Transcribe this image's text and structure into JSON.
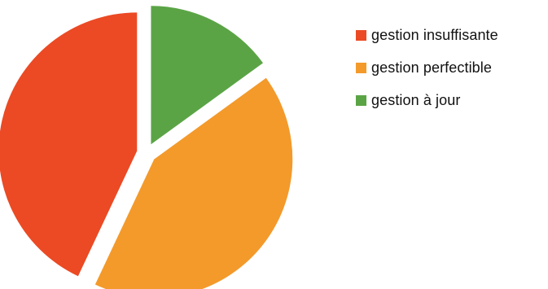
{
  "chart_data": {
    "type": "pie",
    "title": "",
    "categories": [
      "gestion insuffisante",
      "gestion perfectible",
      "gestion à jour"
    ],
    "values": [
      43,
      42,
      15
    ],
    "unit": "%",
    "colors": [
      "#EB4A24",
      "#F39A2B",
      "#5BA446"
    ],
    "exploded": true,
    "start_angle_deg": 0,
    "direction": "counter-clockwise",
    "legend_position": "right"
  },
  "legend": {
    "items": [
      {
        "label": "gestion insuffisante",
        "color": "#EB4A24"
      },
      {
        "label": "gestion perfectible",
        "color": "#F39A2B"
      },
      {
        "label": "gestion à jour",
        "color": "#5BA446"
      }
    ]
  }
}
